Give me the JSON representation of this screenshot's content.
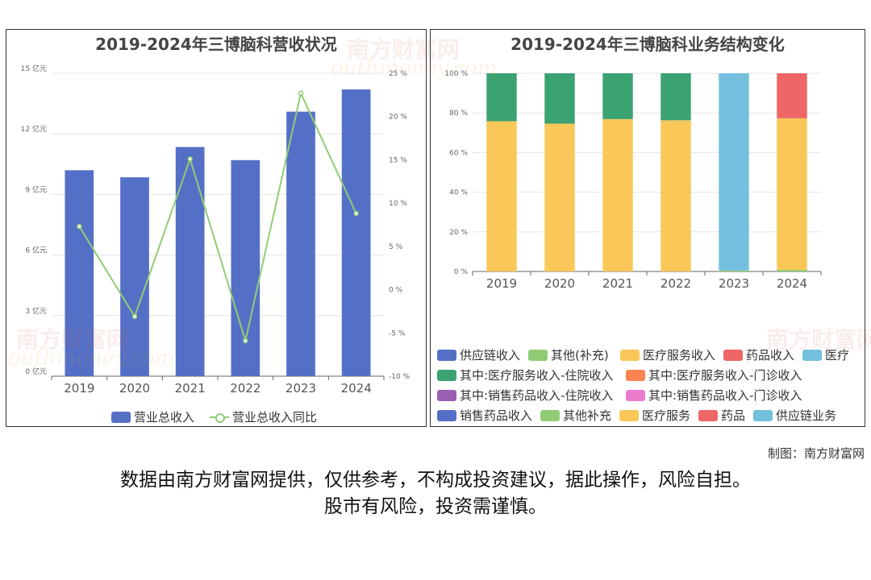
{
  "credit": "制图：南方财富网",
  "disclaimer_line1": "数据由南方财富网提供，仅供参考，不构成投资建议，据此操作，风险自担。",
  "disclaimer_line2": "股市有风险，投资需谨慎。",
  "watermark_cn": "南方财富网",
  "watermark_en": "outhmoney.com",
  "chart_data": [
    {
      "type": "bar",
      "title": "2019-2024年三博脑科营收状况",
      "categories": [
        "2019",
        "2020",
        "2021",
        "2022",
        "2023",
        "2024"
      ],
      "series": [
        {
          "name": "营业总收入",
          "type": "bar",
          "axis": "left",
          "color": "#5470c6",
          "values": [
            10.2,
            9.85,
            11.35,
            10.7,
            13.1,
            14.2
          ]
        },
        {
          "name": "营业总收入同比",
          "type": "line",
          "axis": "right",
          "color": "#91cc75",
          "values": [
            7.3,
            -3.1,
            15.1,
            -5.9,
            22.7,
            8.8
          ]
        }
      ],
      "y_left": {
        "min": 0,
        "max": 15,
        "step": 3,
        "tick_labels": [
          "0 亿元",
          "3 亿元",
          "6 亿元",
          "9 亿元",
          "12 亿元",
          "15 亿元"
        ]
      },
      "y_right": {
        "min": -10,
        "max": 25,
        "step": 5,
        "tick_labels": [
          "-10 %",
          "-5 %",
          "0 %",
          "5 %",
          "10 %",
          "15 %",
          "20 %",
          "25 %"
        ]
      },
      "grid": true,
      "legend_position": "bottom"
    },
    {
      "type": "bar",
      "stacked": true,
      "title": "2019-2024年三博脑科业务结构变化",
      "categories": [
        "2019",
        "2020",
        "2021",
        "2022",
        "2023",
        "2024"
      ],
      "y_axis": {
        "min": 0,
        "max": 100,
        "step": 20,
        "tick_labels": [
          "0 %",
          "20 %",
          "40 %",
          "60 %",
          "80 %",
          "100 %"
        ]
      },
      "series": [
        {
          "name": "其他补充",
          "color": "#91cc75",
          "values": [
            0,
            0,
            0,
            0,
            0.5,
            0.8
          ]
        },
        {
          "name": "医疗服务",
          "color": "#fac858",
          "values": [
            75.8,
            74.6,
            76.9,
            76.3,
            0,
            76.5
          ]
        },
        {
          "name": "其中:医疗服务收入-住院收入",
          "color": "#3ba272",
          "values": [
            24.2,
            25.4,
            23.1,
            23.7,
            0,
            0
          ]
        },
        {
          "name": "医疗",
          "color": "#73c0de",
          "values": [
            0,
            0,
            0,
            0,
            99.5,
            0
          ]
        },
        {
          "name": "药品",
          "color": "#ee6666",
          "values": [
            0,
            0,
            0,
            0,
            0,
            22.7
          ]
        }
      ],
      "legend": [
        {
          "name": "供应链收入",
          "color": "#5470c6"
        },
        {
          "name": "其他(补充)",
          "color": "#91cc75"
        },
        {
          "name": "医疗服务收入",
          "color": "#fac858"
        },
        {
          "name": "药品收入",
          "color": "#ee6666"
        },
        {
          "name": "医疗",
          "color": "#73c0de"
        },
        {
          "name": "其中:医疗服务收入-住院收入",
          "color": "#3ba272"
        },
        {
          "name": "其中:医疗服务收入-门诊收入",
          "color": "#fc8452"
        },
        {
          "name": "其中:销售药品收入-住院收入",
          "color": "#9a60b4"
        },
        {
          "name": "其中:销售药品收入-门诊收入",
          "color": "#ea7ccc"
        },
        {
          "name": "销售药品收入",
          "color": "#5470c6"
        },
        {
          "name": "其他补充",
          "color": "#91cc75"
        },
        {
          "name": "医疗服务",
          "color": "#fac858"
        },
        {
          "name": "药品",
          "color": "#ee6666"
        },
        {
          "name": "供应链业务",
          "color": "#73c0de"
        }
      ],
      "grid": true,
      "legend_position": "bottom"
    }
  ]
}
